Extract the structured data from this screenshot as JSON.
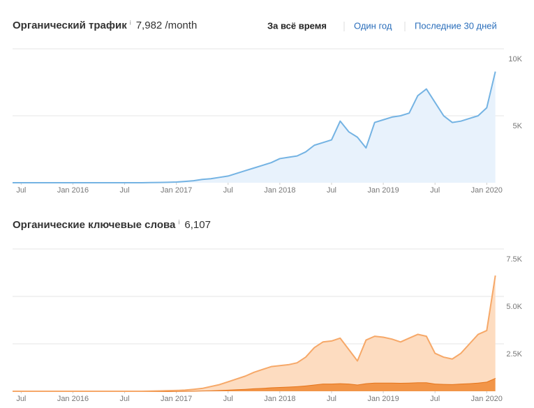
{
  "tabs": {
    "items": [
      "За всё время",
      "Один год",
      "Последние 30 дней"
    ],
    "active": 0
  },
  "chart_data": [
    {
      "type": "area",
      "title": "Органический трафик",
      "info": "i",
      "summary": "7,982 /month",
      "x": [
        "2015-06",
        "2015-07",
        "2015-08",
        "2015-09",
        "2015-10",
        "2015-11",
        "2015-12",
        "2016-01",
        "2016-02",
        "2016-03",
        "2016-04",
        "2016-05",
        "2016-06",
        "2016-07",
        "2016-08",
        "2016-09",
        "2016-10",
        "2016-11",
        "2016-12",
        "2017-01",
        "2017-02",
        "2017-03",
        "2017-04",
        "2017-05",
        "2017-06",
        "2017-07",
        "2017-08",
        "2017-09",
        "2017-10",
        "2017-11",
        "2017-12",
        "2018-01",
        "2018-02",
        "2018-03",
        "2018-04",
        "2018-05",
        "2018-06",
        "2018-07",
        "2018-08",
        "2018-09",
        "2018-10",
        "2018-11",
        "2018-12",
        "2019-01",
        "2019-02",
        "2019-03",
        "2019-04",
        "2019-05",
        "2019-06",
        "2019-07",
        "2019-08",
        "2019-09",
        "2019-10",
        "2019-11",
        "2019-12",
        "2020-01",
        "2020-02"
      ],
      "series": [
        {
          "color": "#74b3e3",
          "fill": "#e8f2fc",
          "values": [
            0,
            0,
            0,
            0,
            0,
            0,
            0,
            0,
            0,
            0,
            0,
            0,
            0,
            0,
            0,
            0,
            10,
            20,
            30,
            50,
            100,
            150,
            250,
            300,
            400,
            500,
            700,
            900,
            1100,
            1300,
            1500,
            1800,
            1900,
            2000,
            2300,
            2800,
            3000,
            3200,
            4600,
            3800,
            3400,
            2600,
            4500,
            4700,
            4900,
            5000,
            5200,
            6500,
            7000,
            6000,
            5000,
            4500,
            4600,
            4800,
            5000,
            5600,
            8300
          ]
        }
      ],
      "xlim": [
        "2015-06",
        "2020-03"
      ],
      "xticks": [
        {
          "value": "2015-07",
          "label": "Jul"
        },
        {
          "value": "2016-01",
          "label": "Jan 2016"
        },
        {
          "value": "2016-07",
          "label": "Jul"
        },
        {
          "value": "2017-01",
          "label": "Jan 2017"
        },
        {
          "value": "2017-07",
          "label": "Jul"
        },
        {
          "value": "2018-01",
          "label": "Jan 2018"
        },
        {
          "value": "2018-07",
          "label": "Jul"
        },
        {
          "value": "2019-01",
          "label": "Jan 2019"
        },
        {
          "value": "2019-07",
          "label": "Jul"
        },
        {
          "value": "2020-01",
          "label": "Jan 2020"
        }
      ],
      "ylim": [
        0,
        10000
      ],
      "yticks": [
        {
          "value": 5000,
          "label": "5K"
        },
        {
          "value": 10000,
          "label": "10K"
        }
      ],
      "grid": true
    },
    {
      "type": "area",
      "title": "Органические ключевые слова",
      "info": "i",
      "summary": "6,107",
      "x": [
        "2015-06",
        "2015-07",
        "2015-08",
        "2015-09",
        "2015-10",
        "2015-11",
        "2015-12",
        "2016-01",
        "2016-02",
        "2016-03",
        "2016-04",
        "2016-05",
        "2016-06",
        "2016-07",
        "2016-08",
        "2016-09",
        "2016-10",
        "2016-11",
        "2016-12",
        "2017-01",
        "2017-02",
        "2017-03",
        "2017-04",
        "2017-05",
        "2017-06",
        "2017-07",
        "2017-08",
        "2017-09",
        "2017-10",
        "2017-11",
        "2017-12",
        "2018-01",
        "2018-02",
        "2018-03",
        "2018-04",
        "2018-05",
        "2018-06",
        "2018-07",
        "2018-08",
        "2018-09",
        "2018-10",
        "2018-11",
        "2018-12",
        "2019-01",
        "2019-02",
        "2019-03",
        "2019-04",
        "2019-05",
        "2019-06",
        "2019-07",
        "2019-08",
        "2019-09",
        "2019-10",
        "2019-11",
        "2019-12",
        "2020-01",
        "2020-02"
      ],
      "stacked": true,
      "series": [
        {
          "color": "#e5741a",
          "fill": "#f29548",
          "values": [
            0,
            0,
            0,
            0,
            0,
            0,
            0,
            0,
            0,
            0,
            0,
            0,
            0,
            0,
            0,
            0,
            0,
            0,
            0,
            10,
            15,
            20,
            30,
            40,
            60,
            80,
            100,
            120,
            150,
            170,
            200,
            220,
            240,
            260,
            300,
            350,
            400,
            400,
            420,
            400,
            350,
            420,
            450,
            450,
            450,
            440,
            450,
            470,
            470,
            400,
            380,
            370,
            400,
            420,
            450,
            500,
            700
          ]
        },
        {
          "color": "#f6a868",
          "fill": "#fddcc0",
          "values": [
            0,
            0,
            0,
            0,
            0,
            0,
            0,
            0,
            0,
            0,
            0,
            0,
            0,
            0,
            0,
            0,
            10,
            20,
            30,
            30,
            45,
            80,
            120,
            210,
            290,
            420,
            550,
            680,
            850,
            980,
            1100,
            1130,
            1160,
            1240,
            1500,
            1950,
            2200,
            2250,
            2380,
            1800,
            1250,
            2280,
            2450,
            2400,
            2300,
            2160,
            2350,
            2530,
            2430,
            1600,
            1420,
            1330,
            1600,
            2080,
            2550,
            2700,
            5400
          ]
        }
      ],
      "xlim": [
        "2015-06",
        "2020-03"
      ],
      "xticks": [
        {
          "value": "2015-07",
          "label": "Jul"
        },
        {
          "value": "2016-01",
          "label": "Jan 2016"
        },
        {
          "value": "2016-07",
          "label": "Jul"
        },
        {
          "value": "2017-01",
          "label": "Jan 2017"
        },
        {
          "value": "2017-07",
          "label": "Jul"
        },
        {
          "value": "2018-01",
          "label": "Jan 2018"
        },
        {
          "value": "2018-07",
          "label": "Jul"
        },
        {
          "value": "2019-01",
          "label": "Jan 2019"
        },
        {
          "value": "2019-07",
          "label": "Jul"
        },
        {
          "value": "2020-01",
          "label": "Jan 2020"
        }
      ],
      "ylim": [
        0,
        7500
      ],
      "yticks": [
        {
          "value": 2500,
          "label": "2.5K"
        },
        {
          "value": 5000,
          "label": "5.0K"
        },
        {
          "value": 7500,
          "label": "7.5K"
        }
      ],
      "grid": true
    }
  ]
}
